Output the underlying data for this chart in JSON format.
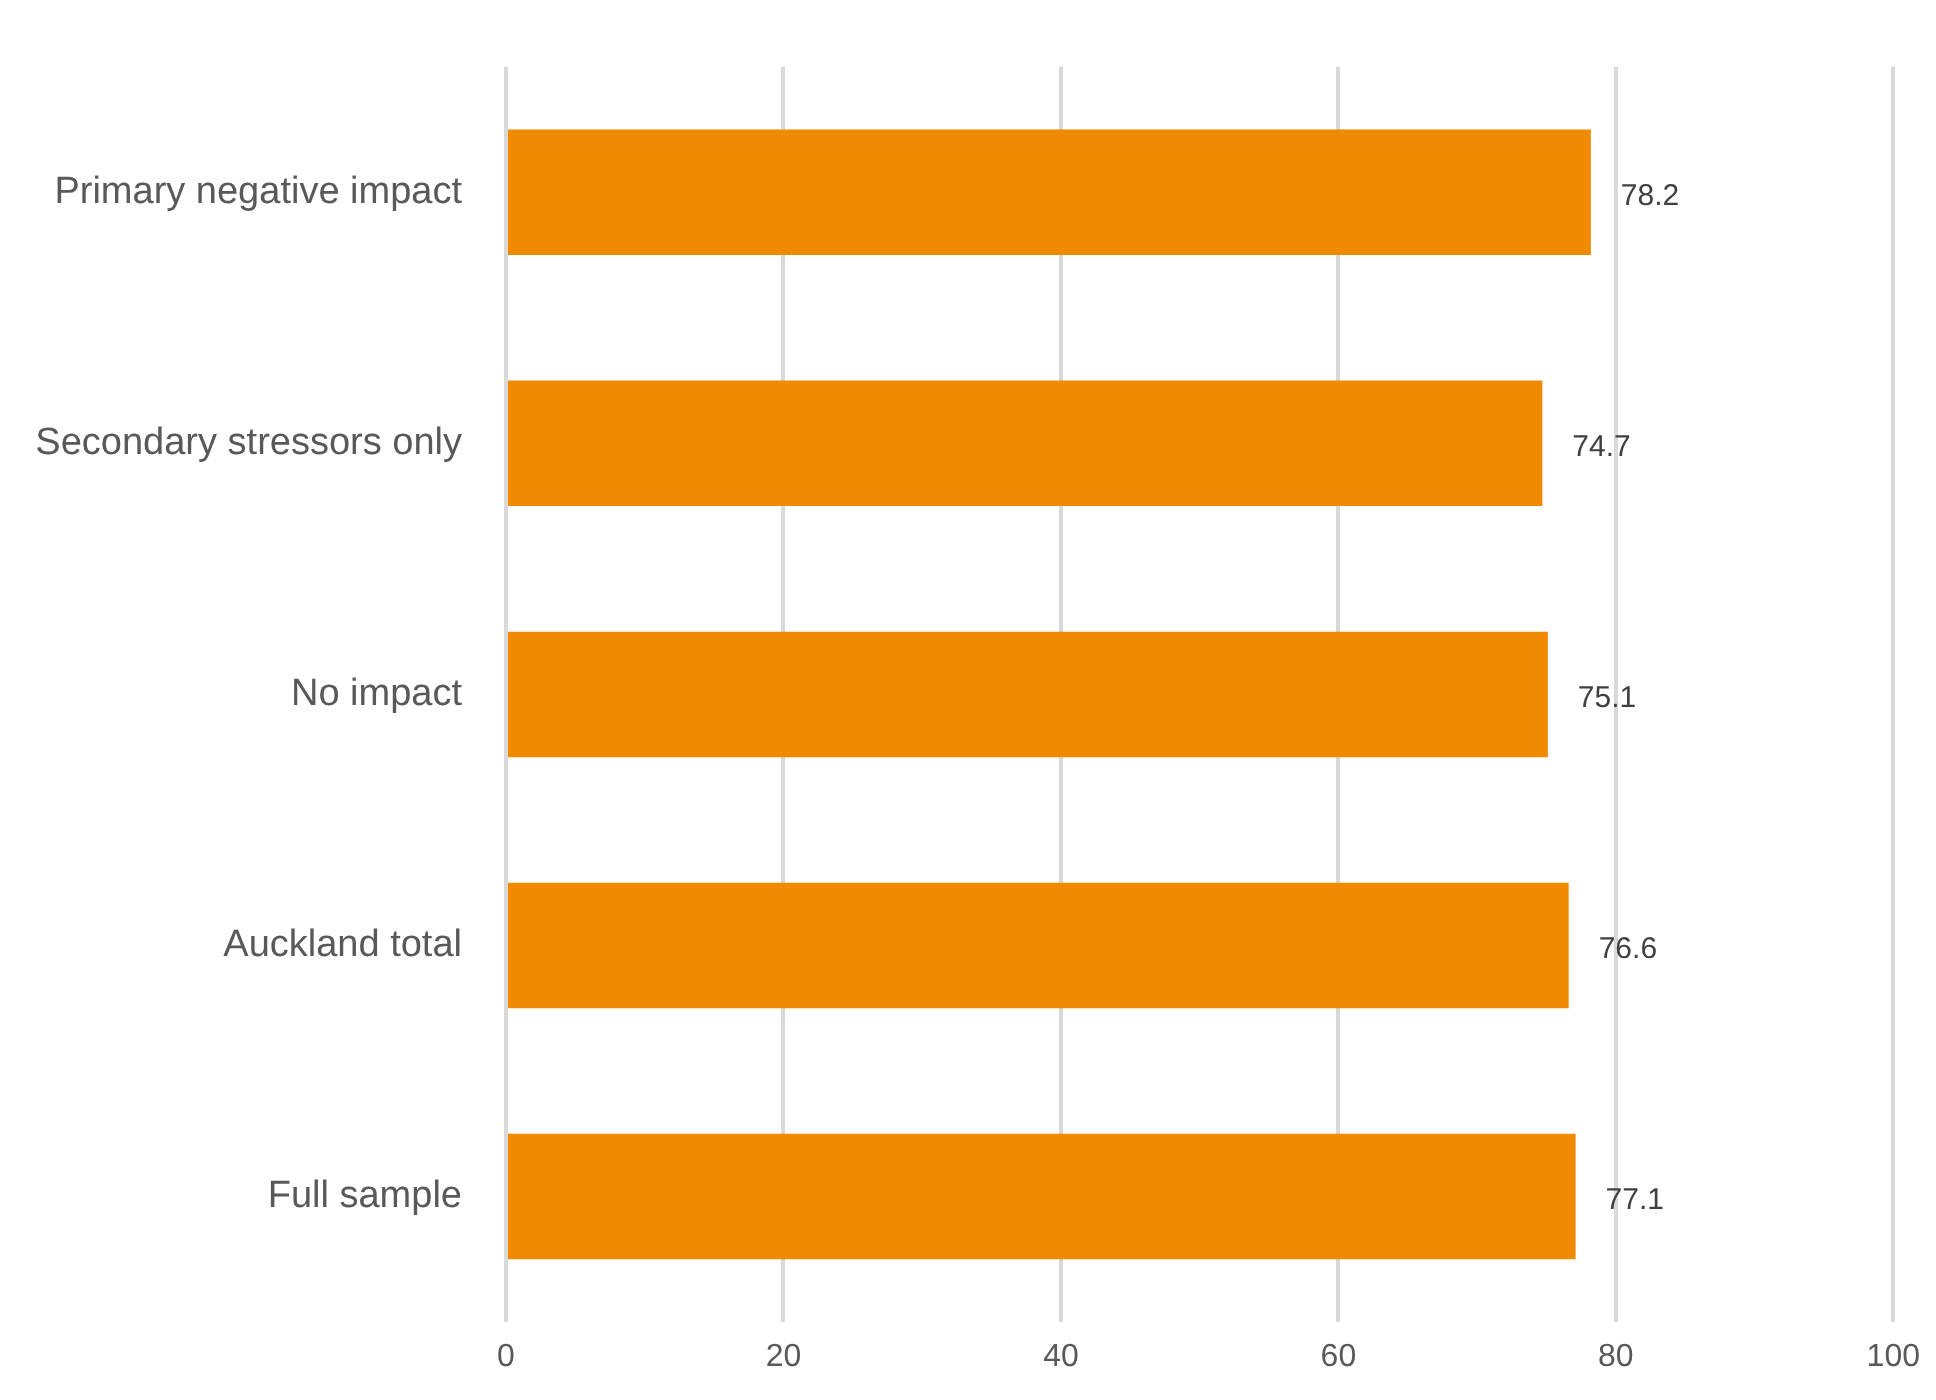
{
  "chart_data": {
    "type": "bar",
    "orientation": "horizontal",
    "categories": [
      "Primary negative impact",
      "Secondary stressors only",
      "No impact",
      "Auckland total",
      "Full sample"
    ],
    "values": [
      78.2,
      74.7,
      75.1,
      76.6,
      77.1
    ],
    "color": "#f08a00",
    "xlim": [
      0,
      100
    ],
    "xticks": [
      0,
      20,
      40,
      60,
      80,
      100
    ],
    "grid": "x",
    "data_labels": true
  }
}
